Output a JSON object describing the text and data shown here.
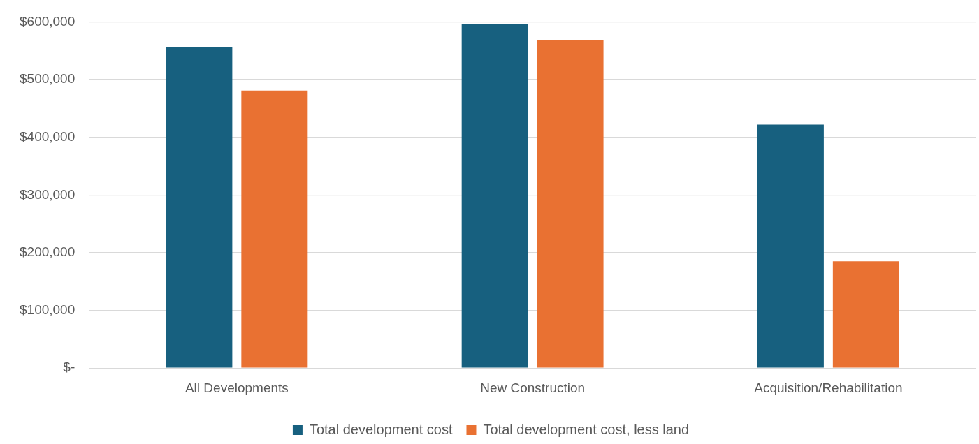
{
  "chart_data": {
    "type": "bar",
    "categories": [
      "All Developments",
      "New Construction",
      "Acquisition/Rehabilitation"
    ],
    "series": [
      {
        "name": "Total development cost",
        "color": "#17607f",
        "values": [
          556000,
          597000,
          422000
        ]
      },
      {
        "name": "Total development cost, less land",
        "color": "#e97132",
        "values": [
          481000,
          568000,
          185000
        ]
      }
    ],
    "ylim": [
      0,
      600000
    ],
    "yticks": [
      {
        "value": 0,
        "label": "$-"
      },
      {
        "value": 100000,
        "label": "$100,000"
      },
      {
        "value": 200000,
        "label": "$200,000"
      },
      {
        "value": 300000,
        "label": "$300,000"
      },
      {
        "value": 400000,
        "label": "$400,000"
      },
      {
        "value": 500000,
        "label": "$500,000"
      },
      {
        "value": 600000,
        "label": "$600,000"
      }
    ],
    "grid": "y",
    "legend": "bottom"
  }
}
